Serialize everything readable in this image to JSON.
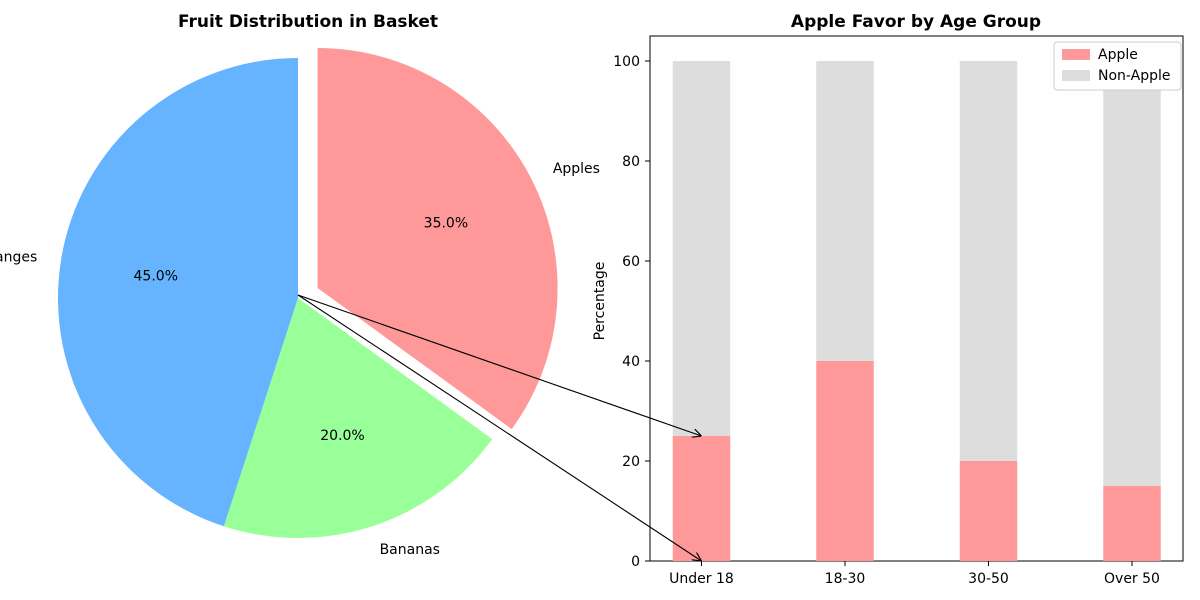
{
  "chart_data": [
    {
      "type": "pie",
      "title": "Fruit Distribution in Basket",
      "labels": [
        "Apples",
        "Bananas",
        "Oranges"
      ],
      "values": [
        35,
        20,
        45
      ],
      "pct_labels": [
        "35.0%",
        "20.0%",
        "45.0%"
      ],
      "colors": [
        "#ff9999",
        "#99ff99",
        "#66b3ff"
      ],
      "explode": [
        "Apples"
      ]
    },
    {
      "type": "bar",
      "stacked": true,
      "title": "Apple Favor by Age Group",
      "ylabel": "Percentage",
      "xlabel": "",
      "categories": [
        "Under 18",
        "18-30",
        "30-50",
        "Over 50"
      ],
      "series": [
        {
          "name": "Apple",
          "values": [
            25,
            40,
            20,
            15
          ],
          "color": "#ff9999"
        },
        {
          "name": "Non-Apple",
          "values": [
            75,
            60,
            80,
            85
          ],
          "color": "#dddddd"
        }
      ],
      "ylim": [
        0,
        105
      ],
      "yticks": [
        0,
        20,
        40,
        60,
        80,
        100
      ],
      "legend": "top-right"
    }
  ]
}
